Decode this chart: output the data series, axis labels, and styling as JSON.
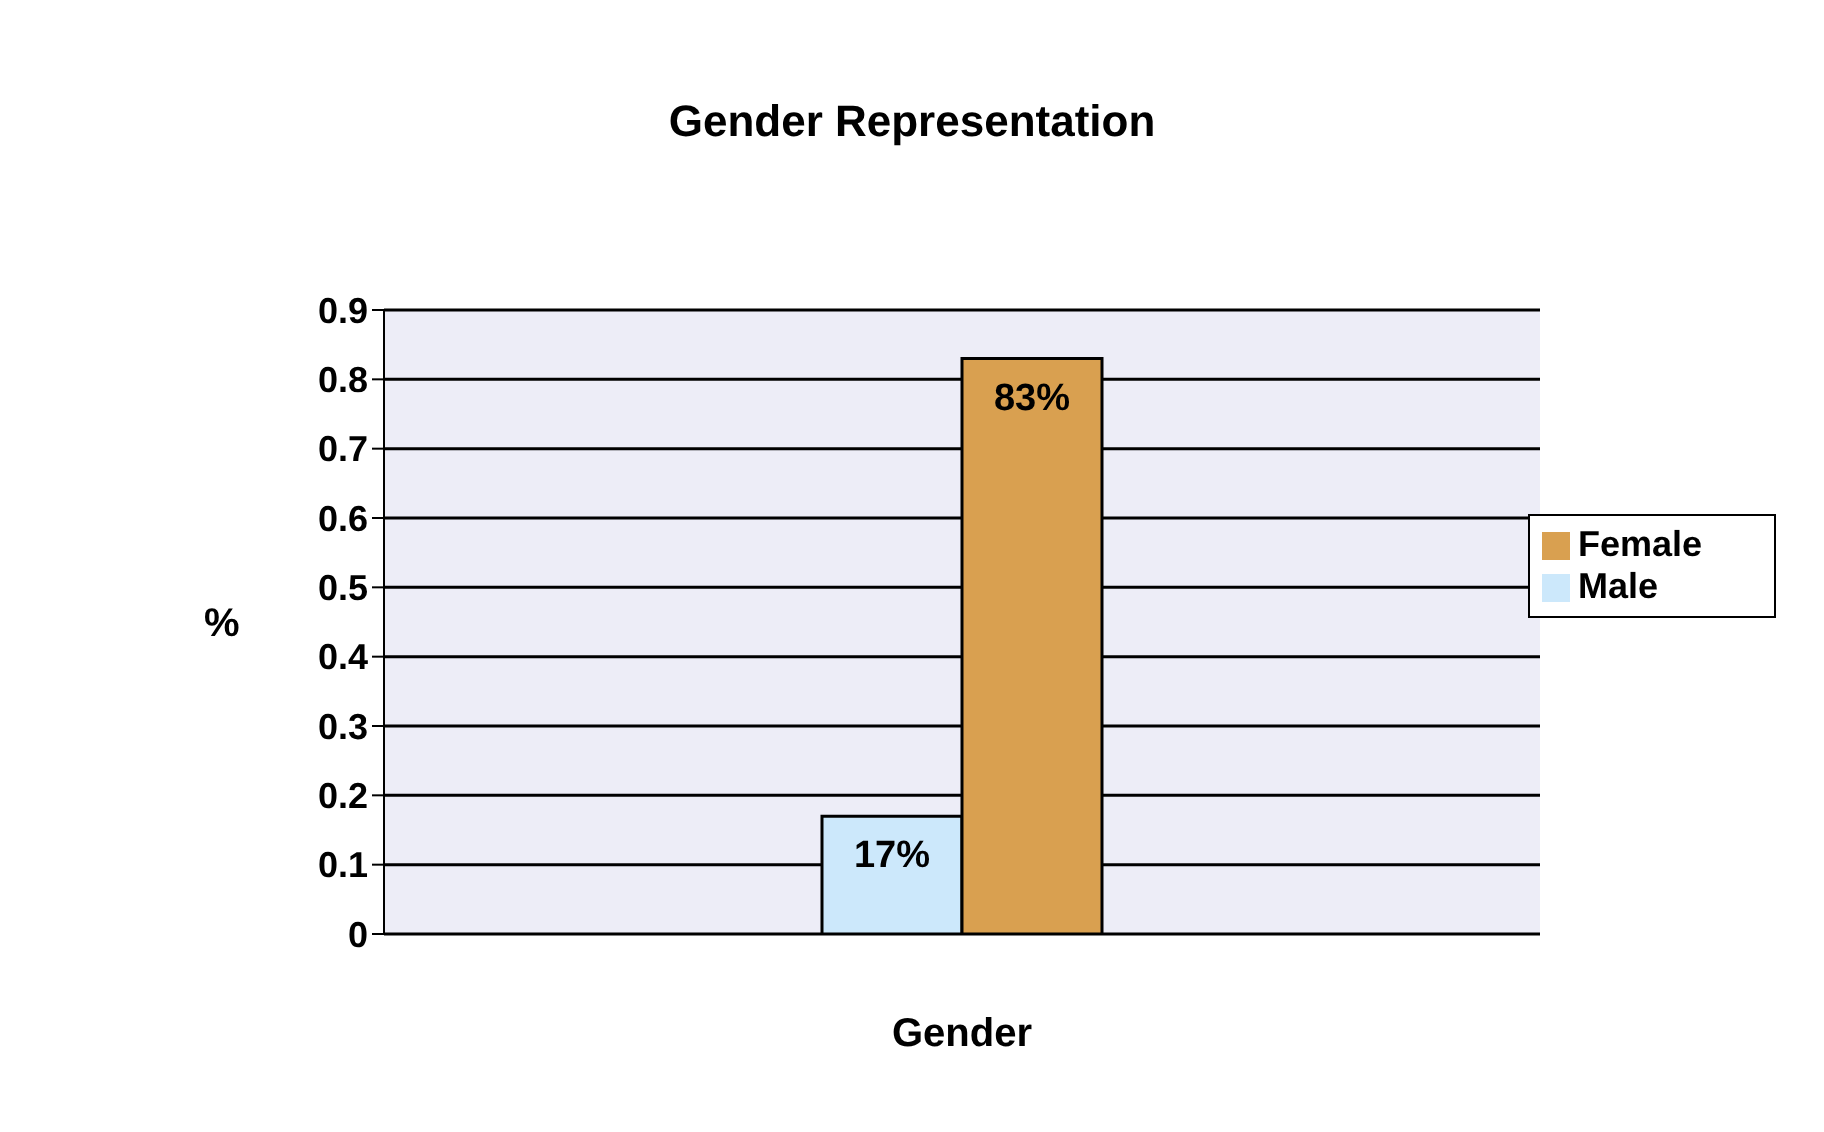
{
  "chart_data": {
    "type": "bar",
    "title": "Gender Representation",
    "xlabel": "Gender",
    "ylabel": "%",
    "categories": [
      null
    ],
    "series": [
      {
        "name": "Male",
        "color": "#cce8fb",
        "values": [
          0.17
        ],
        "value_labels": [
          "17%"
        ]
      },
      {
        "name": "Female",
        "color": "#d9a050",
        "values": [
          0.83
        ],
        "value_labels": [
          "83%"
        ]
      }
    ],
    "ylim": [
      0,
      0.9
    ],
    "yticks": [
      0,
      0.1,
      0.2,
      0.3,
      0.4,
      0.5,
      0.6,
      0.7,
      0.8,
      0.9
    ],
    "grid": "y",
    "legend": "right"
  }
}
